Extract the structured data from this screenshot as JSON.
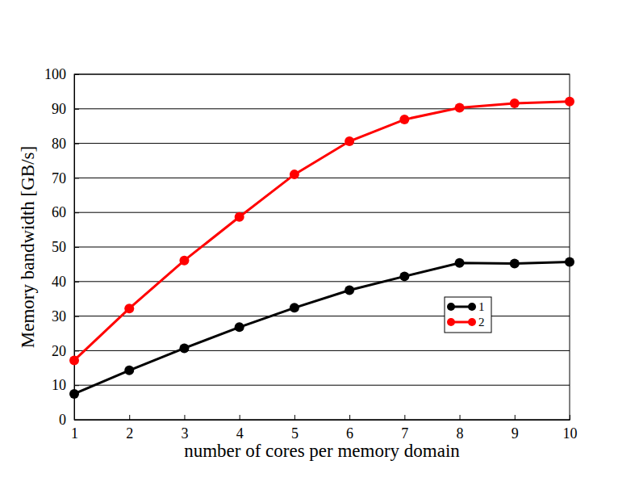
{
  "chart_data": {
    "type": "line",
    "x_label": "number of cores per memory domain",
    "y_label": "Memory bandwidth [GB/s]",
    "x": [
      1,
      2,
      3,
      4,
      5,
      6,
      7,
      8,
      9,
      10
    ],
    "series": [
      {
        "name": "1",
        "color": "#000000",
        "marker": "circle",
        "line_style": "solid",
        "values": [
          7.5,
          14.3,
          20.7,
          26.8,
          32.4,
          37.5,
          41.5,
          45.4,
          45.2,
          45.7
        ]
      },
      {
        "name": "2",
        "color": "#ff0000",
        "marker": "circle",
        "line_style": "solid",
        "values": [
          17.2,
          32.2,
          46.1,
          58.7,
          71.0,
          80.6,
          86.9,
          90.3,
          91.6,
          92.1
        ]
      }
    ],
    "xlim": [
      1,
      10
    ],
    "xticks": [
      1,
      2,
      3,
      4,
      5,
      6,
      7,
      8,
      9,
      10
    ],
    "ylim": [
      0,
      100
    ],
    "yticks": [
      0,
      10,
      20,
      30,
      40,
      50,
      60,
      70,
      80,
      90,
      100
    ],
    "grid": true,
    "legend": "right"
  }
}
